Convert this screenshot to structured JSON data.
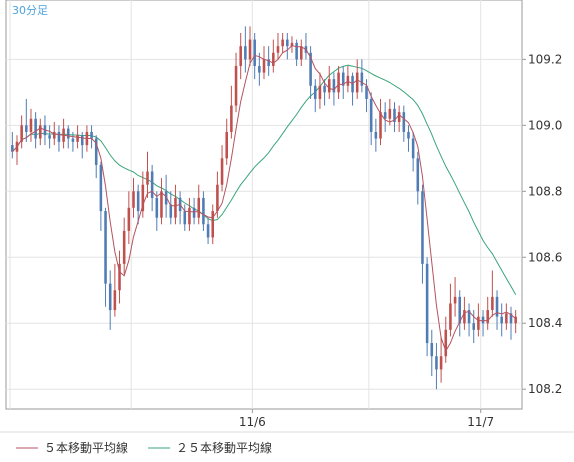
{
  "chart_data": {
    "type": "candlestick",
    "timeframe_label": "30分足",
    "ylim": [
      108.14,
      109.38
    ],
    "y_ticks": [
      "109.2",
      "109.0",
      "108.8",
      "108.6",
      "108.4",
      "108.2"
    ],
    "x_tick_labels": [
      {
        "label": "11/6",
        "bar": 52
      },
      {
        "label": "11/7",
        "bar": 101
      }
    ],
    "grid": true,
    "legend": [
      {
        "name": "５本移動平均線",
        "color": "#b5535f"
      },
      {
        "name": "２５本移動平均線",
        "color": "#3aa57a"
      }
    ],
    "colors": {
      "up": "#c0504d",
      "down": "#4f7cb5",
      "ma5": "#b5535f",
      "ma25": "#3aa57a"
    },
    "candles": [
      [
        108.94,
        108.92,
        108.98,
        108.9
      ],
      [
        108.92,
        108.95,
        108.97,
        108.88
      ],
      [
        108.95,
        109.0,
        109.03,
        108.93
      ],
      [
        109.0,
        108.98,
        109.08,
        108.95
      ],
      [
        108.98,
        109.02,
        109.05,
        108.95
      ],
      [
        109.02,
        108.96,
        109.04,
        108.93
      ],
      [
        108.96,
        109.0,
        109.02,
        108.94
      ],
      [
        109.0,
        108.97,
        109.03,
        108.94
      ],
      [
        108.97,
        108.96,
        109.0,
        108.93
      ],
      [
        108.96,
        108.98,
        109.01,
        108.94
      ],
      [
        108.98,
        108.95,
        109.0,
        108.92
      ],
      [
        108.95,
        108.99,
        109.02,
        108.93
      ],
      [
        108.99,
        108.96,
        109.0,
        108.93
      ],
      [
        108.96,
        108.95,
        108.98,
        108.92
      ],
      [
        108.95,
        108.97,
        109.0,
        108.93
      ],
      [
        108.97,
        108.94,
        108.98,
        108.9
      ],
      [
        108.94,
        108.98,
        109.0,
        108.92
      ],
      [
        108.98,
        108.96,
        109.0,
        108.93
      ],
      [
        108.96,
        108.88,
        108.97,
        108.84
      ],
      [
        108.88,
        108.74,
        108.89,
        108.68
      ],
      [
        108.74,
        108.52,
        108.75,
        108.45
      ],
      [
        108.52,
        108.44,
        108.56,
        108.38
      ],
      [
        108.44,
        108.5,
        108.58,
        108.42
      ],
      [
        108.5,
        108.58,
        108.62,
        108.46
      ],
      [
        108.58,
        108.68,
        108.72,
        108.55
      ],
      [
        108.68,
        108.75,
        108.8,
        108.64
      ],
      [
        108.75,
        108.8,
        108.84,
        108.72
      ],
      [
        108.8,
        108.74,
        108.82,
        108.7
      ],
      [
        108.74,
        108.82,
        108.86,
        108.72
      ],
      [
        108.82,
        108.86,
        108.92,
        108.78
      ],
      [
        108.86,
        108.78,
        108.88,
        108.74
      ],
      [
        108.78,
        108.72,
        108.8,
        108.68
      ],
      [
        108.72,
        108.8,
        108.84,
        108.7
      ],
      [
        108.8,
        108.76,
        108.85,
        108.72
      ],
      [
        108.76,
        108.72,
        108.8,
        108.7
      ],
      [
        108.72,
        108.78,
        108.82,
        108.7
      ],
      [
        108.78,
        108.74,
        108.8,
        108.7
      ],
      [
        108.74,
        108.7,
        108.76,
        108.68
      ],
      [
        108.7,
        108.75,
        108.78,
        108.68
      ],
      [
        108.75,
        108.72,
        108.78,
        108.7
      ],
      [
        108.72,
        108.78,
        108.82,
        108.7
      ],
      [
        108.78,
        108.7,
        108.8,
        108.68
      ],
      [
        108.7,
        108.66,
        108.72,
        108.64
      ],
      [
        108.66,
        108.74,
        108.76,
        108.64
      ],
      [
        108.74,
        108.82,
        108.86,
        108.72
      ],
      [
        108.82,
        108.9,
        108.94,
        108.8
      ],
      [
        108.9,
        108.98,
        109.02,
        108.88
      ],
      [
        108.98,
        109.06,
        109.12,
        108.96
      ],
      [
        109.06,
        109.18,
        109.22,
        109.04
      ],
      [
        109.18,
        109.24,
        109.28,
        109.14
      ],
      [
        109.24,
        109.2,
        109.3,
        109.16
      ],
      [
        109.2,
        109.26,
        109.3,
        109.18
      ],
      [
        109.26,
        109.18,
        109.28,
        109.14
      ],
      [
        109.18,
        109.16,
        109.22,
        109.12
      ],
      [
        109.16,
        109.2,
        109.24,
        109.14
      ],
      [
        109.2,
        109.18,
        109.24,
        109.15
      ],
      [
        109.18,
        109.22,
        109.26,
        109.16
      ],
      [
        109.22,
        109.24,
        109.28,
        109.2
      ],
      [
        109.24,
        109.26,
        109.28,
        109.22
      ],
      [
        109.26,
        109.24,
        109.28,
        109.2
      ],
      [
        109.24,
        109.25,
        109.27,
        109.22
      ],
      [
        109.25,
        109.2,
        109.26,
        109.18
      ],
      [
        109.2,
        109.24,
        109.26,
        109.18
      ],
      [
        109.24,
        109.22,
        109.28,
        109.2
      ],
      [
        109.22,
        109.12,
        109.24,
        109.08
      ],
      [
        109.12,
        109.08,
        109.14,
        109.04
      ],
      [
        109.08,
        109.12,
        109.16,
        109.05
      ],
      [
        109.12,
        109.1,
        109.14,
        109.06
      ],
      [
        109.1,
        109.14,
        109.18,
        109.08
      ],
      [
        109.14,
        109.1,
        109.16,
        109.06
      ],
      [
        109.1,
        109.16,
        109.18,
        109.08
      ],
      [
        109.16,
        109.12,
        109.18,
        109.08
      ],
      [
        109.12,
        109.15,
        109.18,
        109.1
      ],
      [
        109.15,
        109.1,
        109.16,
        109.06
      ],
      [
        109.1,
        109.16,
        109.2,
        109.08
      ],
      [
        109.16,
        109.12,
        109.2,
        109.1
      ],
      [
        109.12,
        109.08,
        109.14,
        109.04
      ],
      [
        109.08,
        108.98,
        109.1,
        108.94
      ],
      [
        108.98,
        108.96,
        109.02,
        108.92
      ],
      [
        108.96,
        109.04,
        109.08,
        108.94
      ],
      [
        109.04,
        109.02,
        109.07,
        108.98
      ],
      [
        109.02,
        109.05,
        109.08,
        109.0
      ],
      [
        109.05,
        109.01,
        109.07,
        108.98
      ],
      [
        109.01,
        109.04,
        109.06,
        108.98
      ],
      [
        109.04,
        108.98,
        109.06,
        108.95
      ],
      [
        108.98,
        108.96,
        109.0,
        108.92
      ],
      [
        108.96,
        108.9,
        108.98,
        108.86
      ],
      [
        108.9,
        108.8,
        108.92,
        108.76
      ],
      [
        108.8,
        108.58,
        108.82,
        108.52
      ],
      [
        108.58,
        108.34,
        108.6,
        108.3
      ],
      [
        108.34,
        108.3,
        108.38,
        108.24
      ],
      [
        108.3,
        108.26,
        108.34,
        108.2
      ],
      [
        108.26,
        108.3,
        108.36,
        108.22
      ],
      [
        108.3,
        108.38,
        108.42,
        108.28
      ],
      [
        108.38,
        108.46,
        108.52,
        108.36
      ],
      [
        108.46,
        108.48,
        108.54,
        108.42
      ],
      [
        108.48,
        108.4,
        108.5,
        108.36
      ],
      [
        108.4,
        108.44,
        108.48,
        108.38
      ],
      [
        108.44,
        108.4,
        108.46,
        108.36
      ],
      [
        108.4,
        108.38,
        108.44,
        108.34
      ],
      [
        108.38,
        108.42,
        108.46,
        108.36
      ],
      [
        108.42,
        108.4,
        108.44,
        108.36
      ],
      [
        108.4,
        108.44,
        108.48,
        108.38
      ],
      [
        108.44,
        108.48,
        108.56,
        108.42
      ],
      [
        108.48,
        108.42,
        108.5,
        108.38
      ],
      [
        108.42,
        108.4,
        108.46,
        108.36
      ],
      [
        108.4,
        108.43,
        108.46,
        108.38
      ],
      [
        108.43,
        108.4,
        108.45,
        108.35
      ],
      [
        108.4,
        108.42,
        108.44,
        108.37
      ]
    ]
  }
}
